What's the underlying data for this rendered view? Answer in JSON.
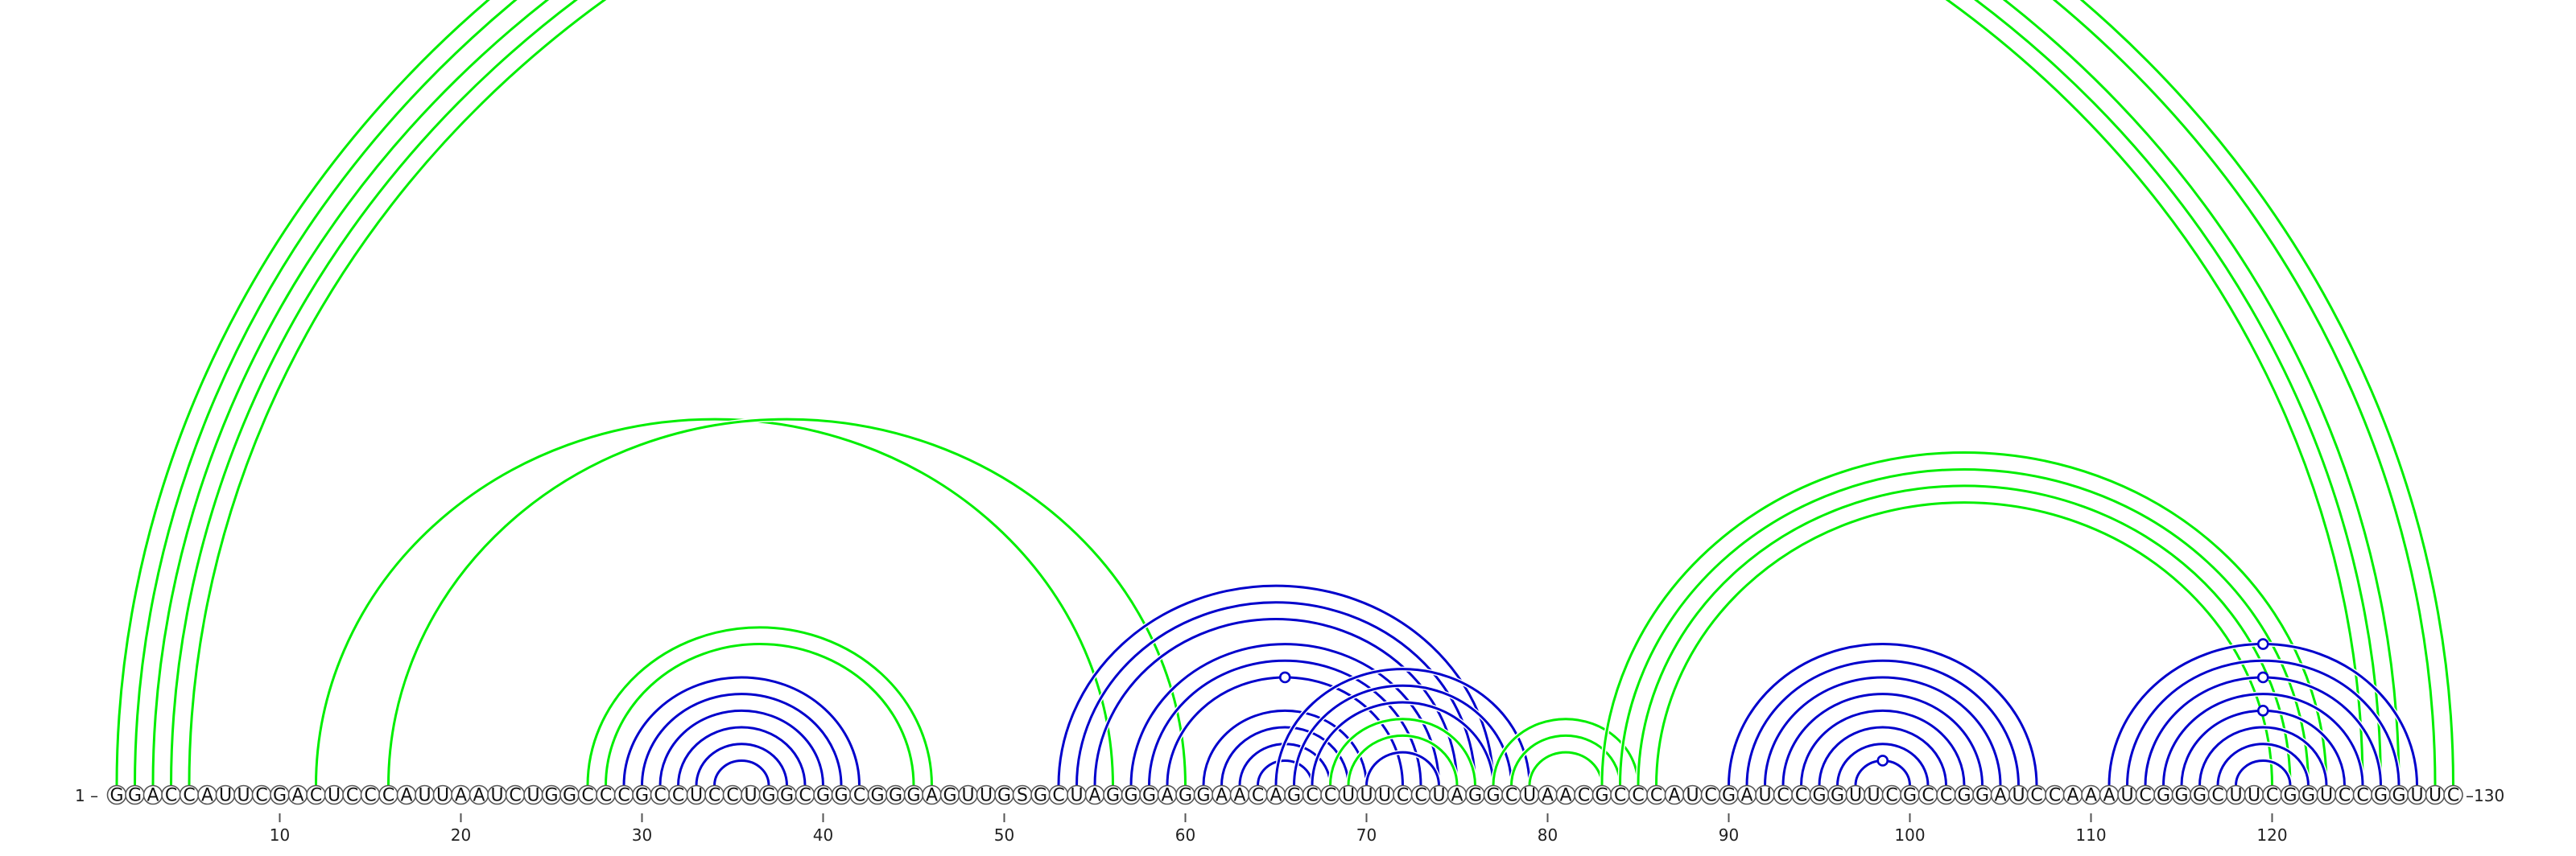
{
  "sequence": "GGACCAUUCGACUCCCAUUAAUCUGGCCCGCCUCCUGGCGGCGGGAGUUGSGCUAGGGAGGAACAGCCUUUCCUAGGCUAACGCCCAUCGAUCCGGUUCGCCGGAUCCAAAUCGGGCUUCGGUCCGGUUC",
  "start_label": "1",
  "end_label": "130",
  "tick_labels": [
    "10",
    "20",
    "30",
    "40",
    "50",
    "60",
    "70",
    "80",
    "90",
    "100",
    "110",
    "120"
  ],
  "colors": {
    "green": "#00ee00",
    "blue": "#0000cc"
  },
  "arcs": [
    {
      "i": 1,
      "j": 130,
      "color": "green",
      "marker": true
    },
    {
      "i": 2,
      "j": 129,
      "color": "green"
    },
    {
      "i": 3,
      "j": 127,
      "color": "green"
    },
    {
      "i": 4,
      "j": 126,
      "color": "green"
    },
    {
      "i": 5,
      "j": 125,
      "color": "green"
    },
    {
      "i": 12,
      "j": 56,
      "color": "green"
    },
    {
      "i": 16,
      "j": 60,
      "color": "green"
    },
    {
      "i": 27,
      "j": 46,
      "color": "green"
    },
    {
      "i": 28,
      "j": 45,
      "color": "green"
    },
    {
      "i": 29,
      "j": 42,
      "color": "blue"
    },
    {
      "i": 30,
      "j": 41,
      "color": "blue"
    },
    {
      "i": 31,
      "j": 40,
      "color": "blue"
    },
    {
      "i": 32,
      "j": 39,
      "color": "blue"
    },
    {
      "i": 33,
      "j": 38,
      "color": "blue"
    },
    {
      "i": 34,
      "j": 37,
      "color": "blue"
    },
    {
      "i": 53,
      "j": 77,
      "color": "blue"
    },
    {
      "i": 54,
      "j": 76,
      "color": "blue"
    },
    {
      "i": 55,
      "j": 75,
      "color": "blue"
    },
    {
      "i": 57,
      "j": 74,
      "color": "blue"
    },
    {
      "i": 58,
      "j": 73,
      "color": "blue"
    },
    {
      "i": 59,
      "j": 72,
      "color": "blue",
      "marker": true
    },
    {
      "i": 61,
      "j": 70,
      "color": "blue"
    },
    {
      "i": 62,
      "j": 69,
      "color": "blue"
    },
    {
      "i": 63,
      "j": 68,
      "color": "blue"
    },
    {
      "i": 64,
      "j": 67,
      "color": "blue"
    },
    {
      "i": 65,
      "j": 79,
      "color": "blue"
    },
    {
      "i": 66,
      "j": 78,
      "color": "blue"
    },
    {
      "i": 67,
      "j": 77,
      "color": "blue"
    },
    {
      "i": 68,
      "j": 76,
      "color": "green"
    },
    {
      "i": 69,
      "j": 75,
      "color": "green"
    },
    {
      "i": 70,
      "j": 74,
      "color": "blue"
    },
    {
      "i": 77,
      "j": 85,
      "color": "green"
    },
    {
      "i": 78,
      "j": 84,
      "color": "green"
    },
    {
      "i": 79,
      "j": 83,
      "color": "green"
    },
    {
      "i": 83,
      "j": 123,
      "color": "green"
    },
    {
      "i": 84,
      "j": 122,
      "color": "green"
    },
    {
      "i": 85,
      "j": 121,
      "color": "green"
    },
    {
      "i": 86,
      "j": 120,
      "color": "green"
    },
    {
      "i": 90,
      "j": 107,
      "color": "blue"
    },
    {
      "i": 91,
      "j": 106,
      "color": "blue"
    },
    {
      "i": 92,
      "j": 105,
      "color": "blue"
    },
    {
      "i": 93,
      "j": 104,
      "color": "blue"
    },
    {
      "i": 94,
      "j": 103,
      "color": "blue"
    },
    {
      "i": 95,
      "j": 102,
      "color": "blue"
    },
    {
      "i": 96,
      "j": 101,
      "color": "blue"
    },
    {
      "i": 97,
      "j": 100,
      "color": "blue",
      "marker": true
    },
    {
      "i": 111,
      "j": 128,
      "color": "blue",
      "marker": true
    },
    {
      "i": 112,
      "j": 127,
      "color": "blue"
    },
    {
      "i": 113,
      "j": 126,
      "color": "blue",
      "marker": true
    },
    {
      "i": 114,
      "j": 125,
      "color": "blue"
    },
    {
      "i": 115,
      "j": 124,
      "color": "blue",
      "marker": true
    },
    {
      "i": 116,
      "j": 123,
      "color": "blue"
    },
    {
      "i": 117,
      "j": 122,
      "color": "blue"
    },
    {
      "i": 118,
      "j": 121,
      "color": "blue"
    }
  ]
}
